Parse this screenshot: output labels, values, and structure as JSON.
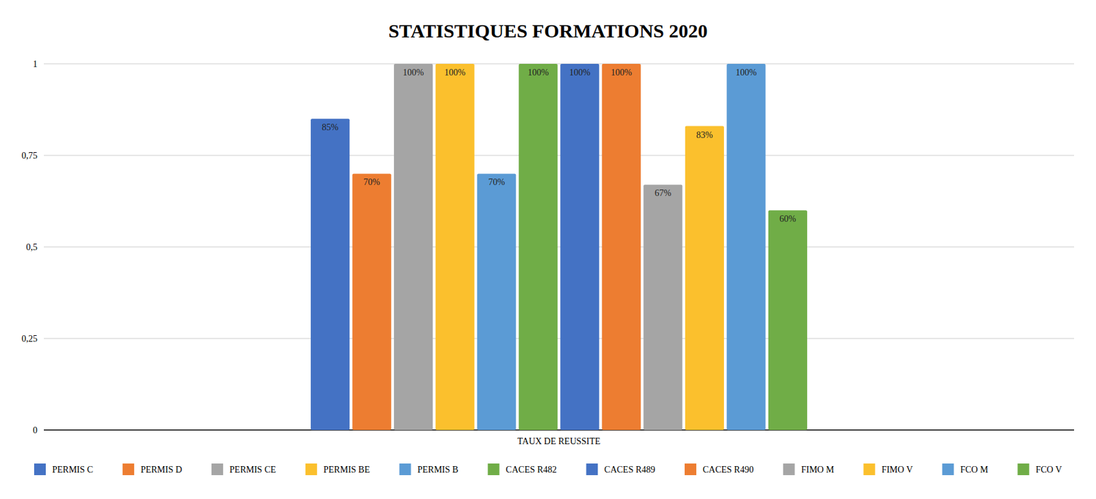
{
  "chart_data": {
    "type": "bar",
    "title": "STATISTIQUES FORMATIONS 2020",
    "categories": [
      "TAUX DE REUSSITE"
    ],
    "series": [
      {
        "name": "PERMIS C",
        "color": "#4472c4",
        "values": [
          0.85
        ],
        "value_labels": [
          "85%"
        ]
      },
      {
        "name": "PERMIS D",
        "color": "#ed7d31",
        "values": [
          0.7
        ],
        "value_labels": [
          "70%"
        ]
      },
      {
        "name": "PERMIS CE",
        "color": "#a5a5a5",
        "values": [
          1.0
        ],
        "value_labels": [
          "100%"
        ]
      },
      {
        "name": "PERMIS BE",
        "color": "#fbc02d",
        "values": [
          1.0
        ],
        "value_labels": [
          "100%"
        ]
      },
      {
        "name": "PERMIS B",
        "color": "#5b9bd5",
        "values": [
          0.7
        ],
        "value_labels": [
          "70%"
        ]
      },
      {
        "name": "CACES R482",
        "color": "#70ad47",
        "values": [
          1.0
        ],
        "value_labels": [
          "100%"
        ]
      },
      {
        "name": "CACES R489",
        "color": "#4472c4",
        "values": [
          1.0
        ],
        "value_labels": [
          "100%"
        ]
      },
      {
        "name": "CACES R490",
        "color": "#ed7d31",
        "values": [
          1.0
        ],
        "value_labels": [
          "100%"
        ]
      },
      {
        "name": "FIMO M",
        "color": "#a5a5a5",
        "values": [
          0.67
        ],
        "value_labels": [
          "67%"
        ]
      },
      {
        "name": "FIMO V",
        "color": "#fbc02d",
        "values": [
          0.83
        ],
        "value_labels": [
          "83%"
        ]
      },
      {
        "name": "FCO M",
        "color": "#5b9bd5",
        "values": [
          1.0
        ],
        "value_labels": [
          "100%"
        ]
      },
      {
        "name": "FCO V",
        "color": "#70ad47",
        "values": [
          0.6
        ],
        "value_labels": [
          "60%"
        ]
      }
    ],
    "ylim": [
      0,
      1
    ],
    "yticks": [
      {
        "value": 0,
        "label": "0"
      },
      {
        "value": 0.25,
        "label": "0,25"
      },
      {
        "value": 0.5,
        "label": "0,5"
      },
      {
        "value": 0.75,
        "label": "0,75"
      },
      {
        "value": 1,
        "label": "1"
      }
    ],
    "grid": true,
    "data_labels": true,
    "legend": "bottom"
  }
}
